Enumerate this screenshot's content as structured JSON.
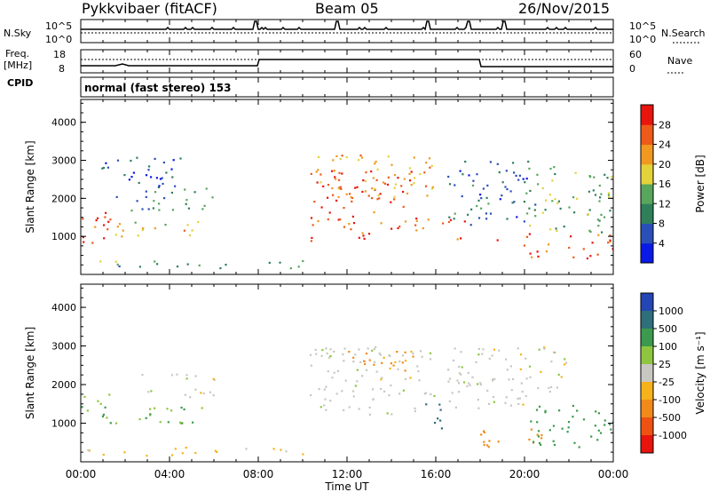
{
  "header": {
    "station": "Pykkvibaer (fitACF)",
    "beam": "Beam 05",
    "date": "26/Nov/2015"
  },
  "top_panels": {
    "nsky_label": "N.Sky",
    "nsky_ticks": [
      "10^5",
      "10^0"
    ],
    "nsearch_label": "N.Search",
    "nsearch_ticks": [
      "10^5",
      "10^0"
    ],
    "freq_label": "Freq.",
    "freq_unit": "[MHz]",
    "freq_ticks": [
      "18",
      "8"
    ],
    "nave_label": "Nave",
    "nave_ticks": [
      "60",
      "0"
    ],
    "cpid_label": "CPID",
    "cpid_text": "normal (fast stereo) 153"
  },
  "colors": {
    "power": [
      "#0a1ae6",
      "#2b4fb8",
      "#2f7f5a",
      "#57a65b",
      "#e3d23a",
      "#f0981f",
      "#ee5a1a",
      "#e8140e"
    ],
    "velocity": [
      "#2446b4",
      "#2f6f7a",
      "#3c9a4e",
      "#8ec63f",
      "#c8c7c2",
      "#f6b21a",
      "#f28a1a",
      "#ee5212",
      "#e8140e"
    ]
  },
  "chart_data": [
    {
      "type": "heatmap",
      "name": "power",
      "xlabel": "",
      "ylabel": "Slant Range [km]",
      "x_ticks": [],
      "y_ticks": [
        "1000",
        "2000",
        "3000",
        "4000"
      ],
      "ylim": [
        0,
        4600
      ],
      "colorbar_label": "Power [dB]",
      "colorbar_ticks": [
        "4",
        "8",
        "12",
        "16",
        "20",
        "24",
        "28"
      ],
      "scatter_regions": [
        {
          "t0": 0.0,
          "t1": 1.5,
          "r0": 850,
          "r1": 1800,
          "v": 28
        },
        {
          "t0": 1.5,
          "t1": 5.5,
          "r0": 1000,
          "r1": 1500,
          "v": 20
        },
        {
          "t0": 1.5,
          "t1": 6.0,
          "r0": 1700,
          "r1": 2300,
          "v": 10
        },
        {
          "t0": 0.5,
          "t1": 4.5,
          "r0": 2300,
          "r1": 3100,
          "v": 6
        },
        {
          "t0": 10.3,
          "t1": 15.0,
          "r0": 900,
          "r1": 2800,
          "v": 28
        },
        {
          "t0": 10.3,
          "t1": 16.0,
          "r0": 2000,
          "r1": 3200,
          "v": 22
        },
        {
          "t0": 15.0,
          "t1": 17.5,
          "r0": 800,
          "r1": 1600,
          "v": 26
        },
        {
          "t0": 16.5,
          "t1": 20.5,
          "r0": 1300,
          "r1": 3000,
          "v": 8
        },
        {
          "t0": 18.5,
          "t1": 24.0,
          "r0": 400,
          "r1": 1100,
          "v": 28
        },
        {
          "t0": 20.0,
          "t1": 24.0,
          "r0": 1100,
          "r1": 2900,
          "v": 14
        },
        {
          "t0": 0.0,
          "t1": 10.0,
          "r0": 180,
          "r1": 400,
          "v": 12
        }
      ]
    },
    {
      "type": "heatmap",
      "name": "velocity",
      "xlabel": "Time UT",
      "ylabel": "Slant Range [km]",
      "x_ticks": [
        "00:00",
        "04:00",
        "08:00",
        "12:00",
        "16:00",
        "20:00",
        "00:00"
      ],
      "y_ticks": [
        "1000",
        "2000",
        "3000",
        "4000"
      ],
      "ylim": [
        0,
        4600
      ],
      "colorbar_label": "Velocity [m s⁻¹]",
      "colorbar_ticks": [
        "1000",
        "500",
        "100",
        "25",
        "-25",
        "-100",
        "-500",
        "-1000"
      ],
      "scatter_regions": [
        {
          "t0": 0.0,
          "t1": 1.5,
          "r0": 850,
          "r1": 1800,
          "v": 100
        },
        {
          "t0": 1.5,
          "t1": 5.5,
          "r0": 1000,
          "r1": 1500,
          "v": 100
        },
        {
          "t0": 2.5,
          "t1": 6.0,
          "r0": 1700,
          "r1": 2300,
          "v": 0
        },
        {
          "t0": 10.3,
          "t1": 16.0,
          "r0": 1200,
          "r1": 3000,
          "v": 0
        },
        {
          "t0": 12.0,
          "t1": 15.0,
          "r0": 2300,
          "r1": 2900,
          "v": -200
        },
        {
          "t0": 15.5,
          "t1": 16.3,
          "r0": 800,
          "r1": 1800,
          "v": 800
        },
        {
          "t0": 16.5,
          "t1": 22.0,
          "r0": 1400,
          "r1": 3000,
          "v": 0
        },
        {
          "t0": 18.0,
          "t1": 21.0,
          "r0": 400,
          "r1": 900,
          "v": -200
        },
        {
          "t0": 20.0,
          "t1": 24.0,
          "r0": 400,
          "r1": 1500,
          "v": 300
        },
        {
          "t0": 0.0,
          "t1": 10.0,
          "r0": 180,
          "r1": 400,
          "v": -50
        }
      ]
    }
  ]
}
